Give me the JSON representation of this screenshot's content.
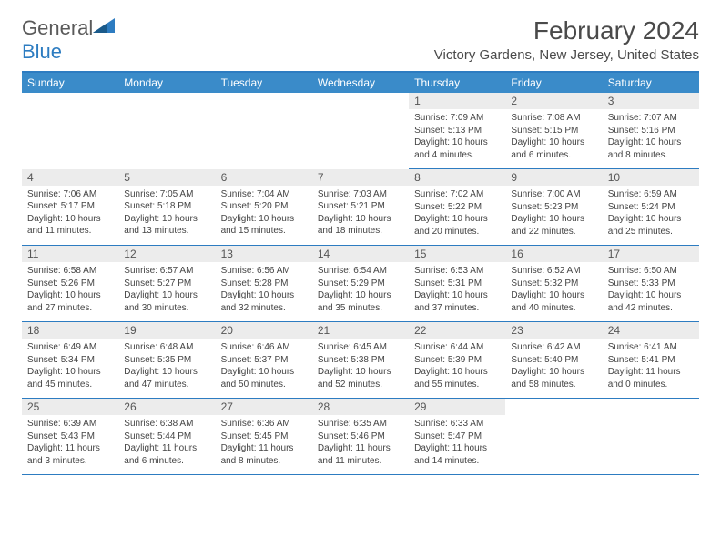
{
  "logo": {
    "text1": "General",
    "text2": "Blue"
  },
  "title": "February 2024",
  "location": "Victory Gardens, New Jersey, United States",
  "colors": {
    "header_bg": "#3a8bc9",
    "border": "#2d7cc1",
    "daynum_bg": "#ececec",
    "text": "#444444"
  },
  "dayHeaders": [
    "Sunday",
    "Monday",
    "Tuesday",
    "Wednesday",
    "Thursday",
    "Friday",
    "Saturday"
  ],
  "weeks": [
    [
      null,
      null,
      null,
      null,
      {
        "n": "1",
        "sr": "7:09 AM",
        "ss": "5:13 PM",
        "dl": "10 hours and 4 minutes."
      },
      {
        "n": "2",
        "sr": "7:08 AM",
        "ss": "5:15 PM",
        "dl": "10 hours and 6 minutes."
      },
      {
        "n": "3",
        "sr": "7:07 AM",
        "ss": "5:16 PM",
        "dl": "10 hours and 8 minutes."
      }
    ],
    [
      {
        "n": "4",
        "sr": "7:06 AM",
        "ss": "5:17 PM",
        "dl": "10 hours and 11 minutes."
      },
      {
        "n": "5",
        "sr": "7:05 AM",
        "ss": "5:18 PM",
        "dl": "10 hours and 13 minutes."
      },
      {
        "n": "6",
        "sr": "7:04 AM",
        "ss": "5:20 PM",
        "dl": "10 hours and 15 minutes."
      },
      {
        "n": "7",
        "sr": "7:03 AM",
        "ss": "5:21 PM",
        "dl": "10 hours and 18 minutes."
      },
      {
        "n": "8",
        "sr": "7:02 AM",
        "ss": "5:22 PM",
        "dl": "10 hours and 20 minutes."
      },
      {
        "n": "9",
        "sr": "7:00 AM",
        "ss": "5:23 PM",
        "dl": "10 hours and 22 minutes."
      },
      {
        "n": "10",
        "sr": "6:59 AM",
        "ss": "5:24 PM",
        "dl": "10 hours and 25 minutes."
      }
    ],
    [
      {
        "n": "11",
        "sr": "6:58 AM",
        "ss": "5:26 PM",
        "dl": "10 hours and 27 minutes."
      },
      {
        "n": "12",
        "sr": "6:57 AM",
        "ss": "5:27 PM",
        "dl": "10 hours and 30 minutes."
      },
      {
        "n": "13",
        "sr": "6:56 AM",
        "ss": "5:28 PM",
        "dl": "10 hours and 32 minutes."
      },
      {
        "n": "14",
        "sr": "6:54 AM",
        "ss": "5:29 PM",
        "dl": "10 hours and 35 minutes."
      },
      {
        "n": "15",
        "sr": "6:53 AM",
        "ss": "5:31 PM",
        "dl": "10 hours and 37 minutes."
      },
      {
        "n": "16",
        "sr": "6:52 AM",
        "ss": "5:32 PM",
        "dl": "10 hours and 40 minutes."
      },
      {
        "n": "17",
        "sr": "6:50 AM",
        "ss": "5:33 PM",
        "dl": "10 hours and 42 minutes."
      }
    ],
    [
      {
        "n": "18",
        "sr": "6:49 AM",
        "ss": "5:34 PM",
        "dl": "10 hours and 45 minutes."
      },
      {
        "n": "19",
        "sr": "6:48 AM",
        "ss": "5:35 PM",
        "dl": "10 hours and 47 minutes."
      },
      {
        "n": "20",
        "sr": "6:46 AM",
        "ss": "5:37 PM",
        "dl": "10 hours and 50 minutes."
      },
      {
        "n": "21",
        "sr": "6:45 AM",
        "ss": "5:38 PM",
        "dl": "10 hours and 52 minutes."
      },
      {
        "n": "22",
        "sr": "6:44 AM",
        "ss": "5:39 PM",
        "dl": "10 hours and 55 minutes."
      },
      {
        "n": "23",
        "sr": "6:42 AM",
        "ss": "5:40 PM",
        "dl": "10 hours and 58 minutes."
      },
      {
        "n": "24",
        "sr": "6:41 AM",
        "ss": "5:41 PM",
        "dl": "11 hours and 0 minutes."
      }
    ],
    [
      {
        "n": "25",
        "sr": "6:39 AM",
        "ss": "5:43 PM",
        "dl": "11 hours and 3 minutes."
      },
      {
        "n": "26",
        "sr": "6:38 AM",
        "ss": "5:44 PM",
        "dl": "11 hours and 6 minutes."
      },
      {
        "n": "27",
        "sr": "6:36 AM",
        "ss": "5:45 PM",
        "dl": "11 hours and 8 minutes."
      },
      {
        "n": "28",
        "sr": "6:35 AM",
        "ss": "5:46 PM",
        "dl": "11 hours and 11 minutes."
      },
      {
        "n": "29",
        "sr": "6:33 AM",
        "ss": "5:47 PM",
        "dl": "11 hours and 14 minutes."
      },
      null,
      null
    ]
  ]
}
